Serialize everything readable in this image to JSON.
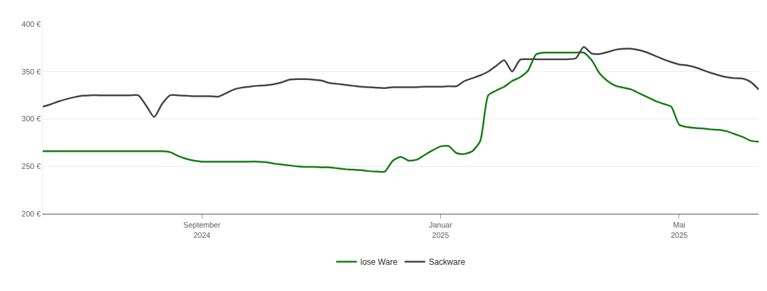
{
  "chart_data": {
    "type": "line",
    "categories": [
      null,
      null,
      null,
      null,
      null,
      null,
      null,
      null,
      null,
      null,
      null,
      null,
      null,
      null,
      null,
      null,
      null,
      null,
      null,
      null,
      "September 2024",
      null,
      null,
      null,
      null,
      null,
      null,
      null,
      null,
      null,
      null,
      null,
      null,
      null,
      null,
      null,
      null,
      null,
      null,
      null,
      null,
      null,
      null,
      null,
      null,
      null,
      null,
      null,
      null,
      null,
      "Januar 2025",
      null,
      null,
      null,
      null,
      null,
      null,
      null,
      null,
      null,
      null,
      null,
      null,
      null,
      null,
      null,
      null,
      null,
      null,
      null,
      null,
      null,
      null,
      null,
      null,
      null,
      null,
      null,
      null,
      null,
      "Mai 2025",
      null,
      null,
      null,
      null,
      null,
      null,
      null,
      null,
      null,
      null
    ],
    "series": [
      {
        "name": "lose Ware",
        "color": "#0f7d0f",
        "values": [
          266,
          266,
          266,
          266,
          266,
          266,
          266,
          266,
          266,
          266,
          266,
          266,
          266,
          266,
          266,
          266,
          265,
          261,
          258,
          256,
          255,
          255,
          255,
          255,
          255,
          255,
          255,
          255,
          254.5,
          253,
          252,
          251,
          250,
          249.5,
          249.5,
          249,
          249,
          248,
          247,
          246.5,
          246,
          245,
          244.5,
          244.5,
          256,
          260,
          256,
          257,
          262,
          267,
          271,
          271.5,
          264,
          263,
          266,
          277,
          325,
          330,
          334,
          340,
          344,
          351,
          368,
          370,
          370,
          370,
          370,
          370,
          370,
          362,
          348,
          340,
          335,
          333,
          331,
          327,
          323,
          319,
          316,
          313,
          294,
          291.5,
          290.5,
          290,
          289,
          288.5,
          287,
          284,
          281,
          277,
          276
        ]
      },
      {
        "name": "Sackware",
        "color": "#434343",
        "values": [
          313,
          315.5,
          318.5,
          321,
          323,
          324.5,
          325,
          325,
          325,
          325,
          325,
          325,
          325,
          314,
          302,
          316,
          325,
          325,
          324.5,
          324,
          324,
          324,
          323.5,
          327,
          331,
          333,
          334,
          335,
          335.5,
          336.5,
          338.5,
          341.5,
          342,
          342,
          341.5,
          340.5,
          338,
          337,
          336,
          335,
          334,
          333.5,
          333,
          332.5,
          333.5,
          333.5,
          333.5,
          333.5,
          334,
          334,
          334,
          334.5,
          334.5,
          340,
          343,
          346,
          350,
          356,
          362,
          350,
          362.5,
          363,
          363,
          363,
          363,
          363,
          363,
          364,
          376,
          369,
          368.5,
          370.5,
          373,
          374,
          374,
          372.5,
          370,
          366.5,
          363,
          360,
          357.5,
          356.5,
          354.5,
          351.5,
          348.5,
          346,
          344,
          343,
          342.5,
          339,
          331
        ]
      }
    ],
    "ylim": [
      200,
      400
    ],
    "yticks": [
      {
        "value": 200,
        "label": "200 €"
      },
      {
        "value": 250,
        "label": "250 €"
      },
      {
        "value": 300,
        "label": "300 €"
      },
      {
        "value": 350,
        "label": "350 €"
      },
      {
        "value": 400,
        "label": "400 €"
      }
    ],
    "grid": true,
    "legend": "bottom"
  }
}
